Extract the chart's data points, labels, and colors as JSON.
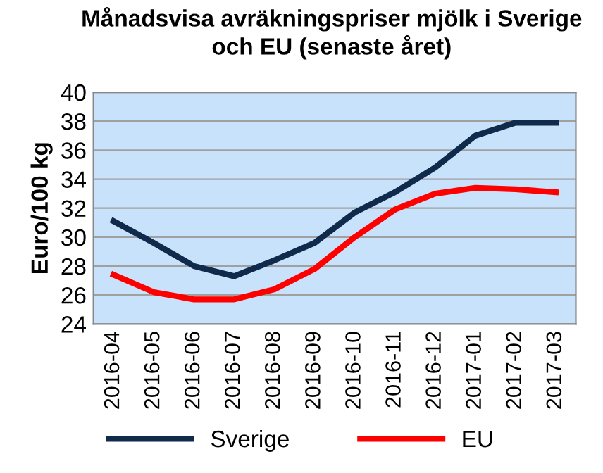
{
  "chart_data": {
    "type": "line",
    "title": "Månadsvisa avräkningspriser mjölk i Sverige och EU (senaste året)",
    "ylabel": "Euro/100 kg",
    "categories": [
      "2016-04",
      "2016-05",
      "2016-06",
      "2016-07",
      "2016-08",
      "2016-09",
      "2016-10",
      "2016-11",
      "2016-12",
      "2017-01",
      "2017-02",
      "2017-03"
    ],
    "series": [
      {
        "name": "Sverige",
        "color": "#0f2a4a",
        "values": [
          31.1,
          29.6,
          28.0,
          27.3,
          28.4,
          29.6,
          31.7,
          33.1,
          34.8,
          37.0,
          37.9,
          37.9
        ]
      },
      {
        "name": "EU",
        "color": "#ff0000",
        "values": [
          27.4,
          26.2,
          25.7,
          25.7,
          26.4,
          27.8,
          30.0,
          31.9,
          33.0,
          33.4,
          33.3,
          33.1
        ]
      }
    ],
    "ylim": [
      24,
      40
    ],
    "yticks": [
      24,
      26,
      28,
      30,
      32,
      34,
      36,
      38,
      40
    ],
    "grid": "y",
    "legend": "bottom",
    "marker": "none",
    "line_style": "solid"
  }
}
